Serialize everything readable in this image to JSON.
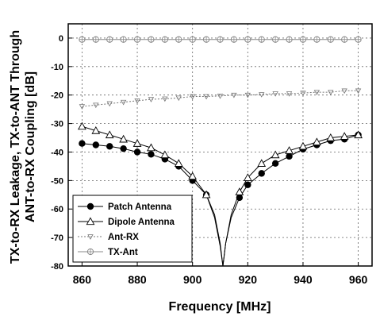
{
  "chart_data": {
    "type": "line",
    "title": "",
    "xlabel": "Frequency [MHz]",
    "ylabel_lines": [
      "TX-to-RX Leakage, TX-to-ANT Through",
      "ANT-to-RX Coupling [dB]"
    ],
    "xlim": [
      855,
      965
    ],
    "ylim": [
      -80,
      5
    ],
    "x_ticks": [
      860,
      880,
      900,
      920,
      940,
      960
    ],
    "y_ticks": [
      0,
      -10,
      -20,
      -30,
      -40,
      -50,
      -60,
      -70,
      -80
    ],
    "grid": true,
    "legend_position": "bottom-left",
    "series": [
      {
        "name": "Patch Antenna",
        "color": "#000000",
        "marker": "filled-circle",
        "x": [
          860,
          865,
          870,
          875,
          880,
          885,
          890,
          895,
          900,
          905,
          908,
          910,
          911,
          912,
          914,
          917,
          920,
          925,
          930,
          935,
          940,
          945,
          950,
          955,
          960
        ],
        "y": [
          -37,
          -37.5,
          -38,
          -38.8,
          -40,
          -40.8,
          -42.5,
          -45,
          -50,
          -55,
          -62,
          -72,
          -80,
          -72,
          -63,
          -56,
          -51.5,
          -47.5,
          -44,
          -41.5,
          -39,
          -37.5,
          -36,
          -35.5,
          -34
        ]
      },
      {
        "name": "Dipole Antenna",
        "color": "#000000",
        "marker": "open-triangle",
        "x": [
          860,
          865,
          870,
          875,
          880,
          885,
          890,
          895,
          900,
          905,
          908,
          910,
          911,
          912,
          914,
          917,
          920,
          925,
          930,
          935,
          940,
          945,
          950,
          955,
          960
        ],
        "y": [
          -31,
          -32.5,
          -34,
          -35.5,
          -37,
          -38.5,
          -41,
          -44,
          -48.5,
          -55,
          -63,
          -73,
          -80,
          -72,
          -62,
          -54,
          -49,
          -44,
          -41,
          -39.5,
          -38,
          -36.5,
          -35,
          -34.5,
          -34
        ]
      },
      {
        "name": "Ant-RX",
        "color": "#777777",
        "marker": "small-triangle",
        "x": [
          860,
          865,
          870,
          875,
          880,
          885,
          890,
          895,
          900,
          905,
          910,
          915,
          920,
          925,
          930,
          935,
          940,
          945,
          950,
          955,
          960
        ],
        "y": [
          -24,
          -23.5,
          -23,
          -22.5,
          -22,
          -21.5,
          -21.3,
          -21,
          -20.5,
          -20.5,
          -20.3,
          -20,
          -20,
          -19.8,
          -19.5,
          -19.5,
          -19.3,
          -19,
          -19,
          -18.5,
          -18.5
        ]
      },
      {
        "name": "TX-Ant",
        "color": "#888888",
        "marker": "crossed-circle",
        "x": [
          860,
          865,
          870,
          875,
          880,
          885,
          890,
          895,
          900,
          905,
          910,
          915,
          920,
          925,
          930,
          935,
          940,
          945,
          950,
          955,
          960
        ],
        "y": [
          -0.5,
          -0.5,
          -0.5,
          -0.5,
          -0.5,
          -0.5,
          -0.5,
          -0.5,
          -0.5,
          -0.5,
          -0.5,
          -0.5,
          -0.5,
          -0.5,
          -0.5,
          -0.5,
          -0.5,
          -0.5,
          -0.5,
          -0.5,
          -0.5
        ]
      }
    ]
  }
}
